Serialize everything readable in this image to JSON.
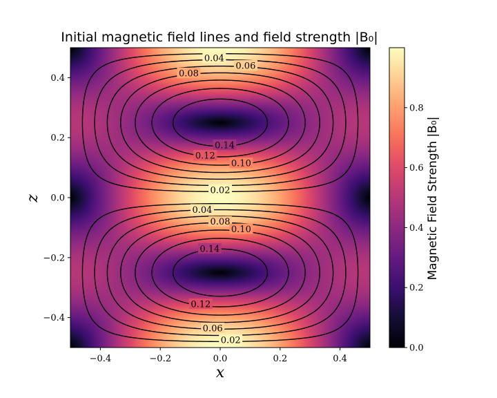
{
  "chart_data": {
    "type": "heatmap",
    "title": "Initial magnetic field lines and field strength |B₀|",
    "xlabel": "x",
    "ylabel": "z",
    "xlim": [
      -0.5,
      0.5
    ],
    "ylim": [
      -0.5,
      0.5
    ],
    "x_ticks": [
      "−0.4",
      "−0.2",
      "0.0",
      "0.2",
      "0.4"
    ],
    "y_ticks": [
      "−0.4",
      "−0.2",
      "0.0",
      "0.2",
      "0.4"
    ],
    "x_tick_values": [
      -0.4,
      -0.2,
      0.0,
      0.2,
      0.4
    ],
    "y_tick_values": [
      -0.4,
      -0.2,
      0.0,
      0.2,
      0.4
    ],
    "colormap": "magma",
    "colorbar": {
      "label": "Magnetic Field Strength |B₀|",
      "range": [
        0.0,
        1.0
      ],
      "ticks": [
        "0.0",
        "0.2",
        "0.4",
        "0.6",
        "0.8"
      ],
      "tick_values": [
        0.0,
        0.2,
        0.4,
        0.6,
        0.8
      ]
    },
    "contour_levels": [
      0.02,
      0.04,
      0.06,
      0.08,
      0.1,
      0.12,
      0.14
    ],
    "contour_labels": [
      {
        "text": "0.04",
        "x": -0.02,
        "z": 0.465
      },
      {
        "text": "0.06",
        "x": 0.085,
        "z": 0.44
      },
      {
        "text": "0.08",
        "x": -0.105,
        "z": 0.415
      },
      {
        "text": "0.14",
        "x": 0.015,
        "z": 0.175
      },
      {
        "text": "0.12",
        "x": -0.05,
        "z": 0.14
      },
      {
        "text": "0.10",
        "x": 0.07,
        "z": 0.115
      },
      {
        "text": "0.02",
        "x": 0.0,
        "z": 0.025
      },
      {
        "text": "0.04",
        "x": -0.06,
        "z": -0.04
      },
      {
        "text": "0.08",
        "x": 0.0,
        "z": -0.08
      },
      {
        "text": "0.10",
        "x": 0.07,
        "z": -0.105
      },
      {
        "text": "0.14",
        "x": -0.035,
        "z": -0.17
      },
      {
        "text": "0.12",
        "x": -0.065,
        "z": -0.355
      },
      {
        "text": "0.06",
        "x": -0.025,
        "z": -0.435
      },
      {
        "text": "0.02",
        "x": 0.035,
        "z": -0.475
      }
    ]
  }
}
